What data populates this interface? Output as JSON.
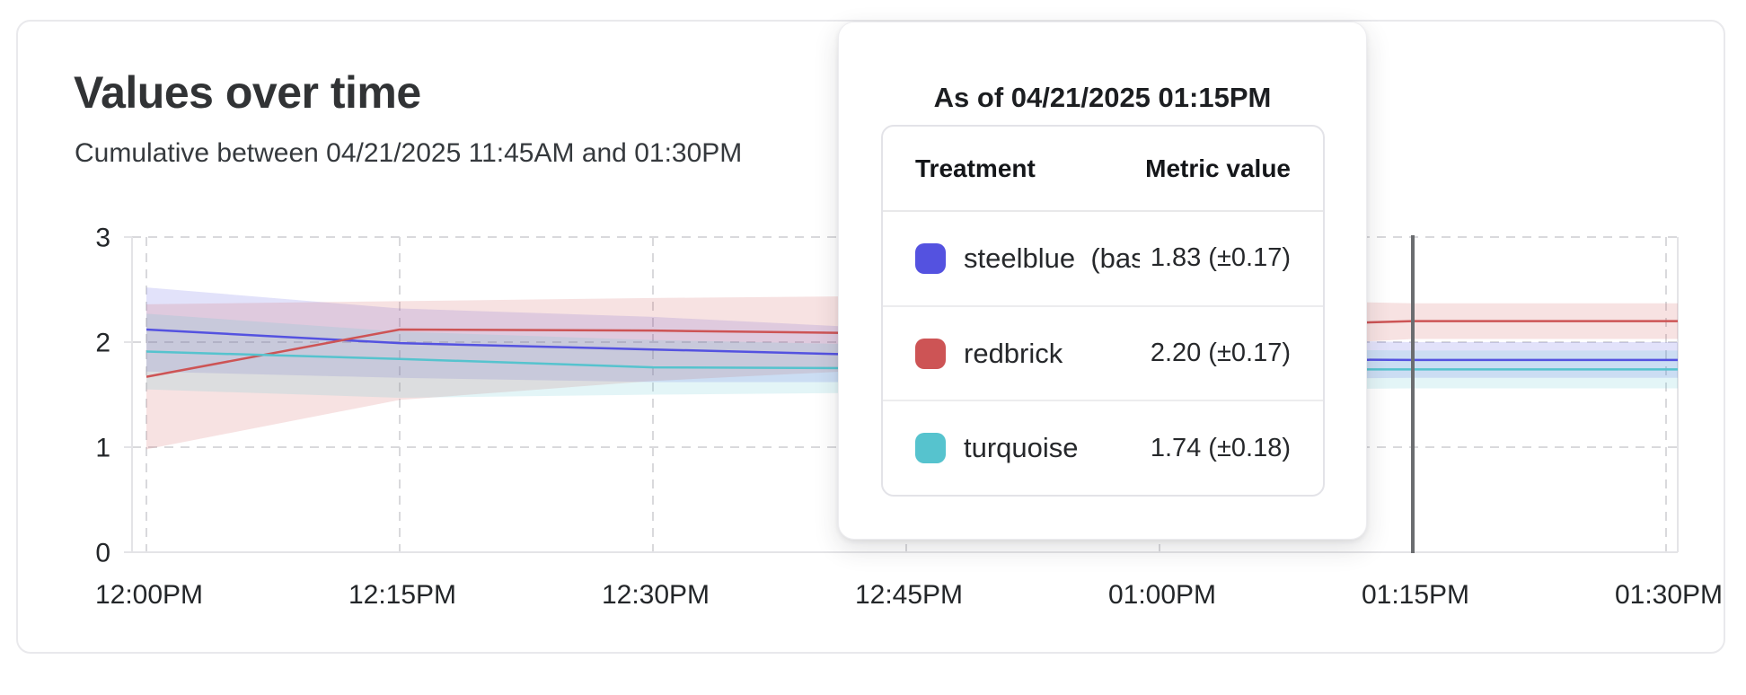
{
  "card": {
    "title": "Values over time",
    "subtitle": "Cumulative between 04/21/2025 11:45AM and 01:30PM"
  },
  "tooltip": {
    "title": "As of 04/21/2025 01:15PM",
    "columns": [
      "Treatment",
      "Metric value"
    ],
    "rows": [
      {
        "label": "steelblue  (baseli",
        "value": "1.83 (±0.17)",
        "color": "#5452e0"
      },
      {
        "label": "redbrick",
        "value": "2.20 (±0.17)",
        "color": "#cd5455"
      },
      {
        "label": "turquoise",
        "value": "1.74 (±0.18)",
        "color": "#56c3ce"
      }
    ]
  },
  "chart_data": {
    "type": "line",
    "title": "Values over time",
    "xlabel": "",
    "ylabel": "",
    "x_tick_labels": [
      "12:00PM",
      "12:15PM",
      "12:30PM",
      "12:45PM",
      "01:00PM",
      "01:15PM",
      "01:30PM"
    ],
    "y_tick_labels": [
      "0",
      "1",
      "2",
      "3"
    ],
    "y_ticks": [
      0,
      1,
      2,
      3
    ],
    "ylim": [
      0,
      3
    ],
    "grid": true,
    "legend_position": "tooltip",
    "hover_time": "01:15PM",
    "hover_index": 5,
    "series": [
      {
        "name": "steelblue",
        "color": "#5452e0",
        "values": [
          2.12,
          1.99,
          1.93,
          1.87,
          1.84,
          1.83,
          1.83
        ],
        "lower": [
          1.72,
          1.66,
          1.62,
          1.62,
          1.64,
          1.66,
          1.66
        ],
        "upper": [
          2.52,
          2.32,
          2.24,
          2.12,
          2.04,
          2.0,
          2.0
        ]
      },
      {
        "name": "redbrick",
        "color": "#cd5455",
        "values": [
          1.67,
          2.12,
          2.11,
          2.08,
          2.13,
          2.2,
          2.2
        ],
        "lower": [
          0.98,
          1.45,
          1.63,
          1.75,
          1.9,
          2.03,
          2.03
        ],
        "upper": [
          2.36,
          2.39,
          2.42,
          2.44,
          2.42,
          2.37,
          2.37
        ]
      },
      {
        "name": "turquoise",
        "color": "#56c3ce",
        "values": [
          1.91,
          1.84,
          1.76,
          1.75,
          1.74,
          1.74,
          1.74
        ],
        "lower": [
          1.55,
          1.47,
          1.5,
          1.52,
          1.54,
          1.56,
          1.56
        ],
        "upper": [
          2.27,
          2.1,
          2.02,
          1.97,
          1.94,
          1.92,
          1.92
        ]
      }
    ],
    "colors": {
      "grid": "#d9d9dc",
      "axis": "#e4e4e7",
      "hover_line": "#6b6d70",
      "band_opacity": 0.17
    }
  }
}
